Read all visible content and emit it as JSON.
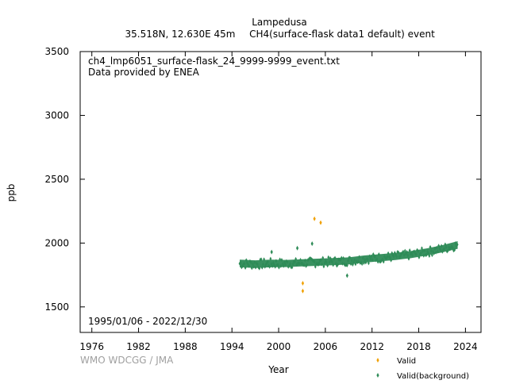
{
  "header": {
    "station": "Lampedusa",
    "location": "35.518N, 12.630E 45m",
    "dataset": "CH4(surface-flask data1 default) event"
  },
  "plot_text": {
    "filename": "ch4_lmp6051_surface-flask_24_9999-9999_event.txt",
    "provider": "Data provided by ENEA",
    "date_range": "1995/01/06 - 2022/12/30"
  },
  "footer": {
    "credit": "WMO WDCGG / JMA"
  },
  "chart_data": {
    "type": "scatter",
    "title": "",
    "xlabel": "Year",
    "ylabel": "ppb",
    "xlim": [
      1974.5,
      2026.0
    ],
    "ylim": [
      1300,
      3500
    ],
    "xticks": [
      1976,
      1982,
      1988,
      1994,
      2000,
      2006,
      2012,
      2018,
      2024
    ],
    "yticks": [
      1500,
      2000,
      2500,
      3000,
      3500
    ],
    "grid": false,
    "legend_position": "bottom-right",
    "background_band": {
      "x": [
        1995.0,
        1997.0,
        1999.0,
        2001.0,
        2003.0,
        2005.0,
        2007.0,
        2009.0,
        2011.0,
        2013.0,
        2015.0,
        2017.0,
        2019.0,
        2021.0,
        2023.0
      ],
      "center": [
        1840,
        1835,
        1840,
        1840,
        1845,
        1850,
        1855,
        1860,
        1875,
        1885,
        1895,
        1910,
        1930,
        1955,
        1985
      ],
      "halfwidth": [
        30,
        30,
        30,
        28,
        28,
        28,
        28,
        28,
        28,
        28,
        28,
        28,
        28,
        28,
        30
      ]
    },
    "series": [
      {
        "name": "Valid",
        "color": "#f0a000",
        "points": [
          [
            2003.1,
            1685
          ],
          [
            2003.1,
            1625
          ],
          [
            2004.6,
            2190
          ],
          [
            2005.4,
            2160
          ]
        ]
      },
      {
        "name": "Valid(background)",
        "color": "#2e8b57",
        "points": [
          [
            2004.3,
            1995
          ],
          [
            2002.4,
            1960
          ],
          [
            2008.8,
            1745
          ],
          [
            1999.1,
            1930
          ]
        ]
      }
    ]
  }
}
